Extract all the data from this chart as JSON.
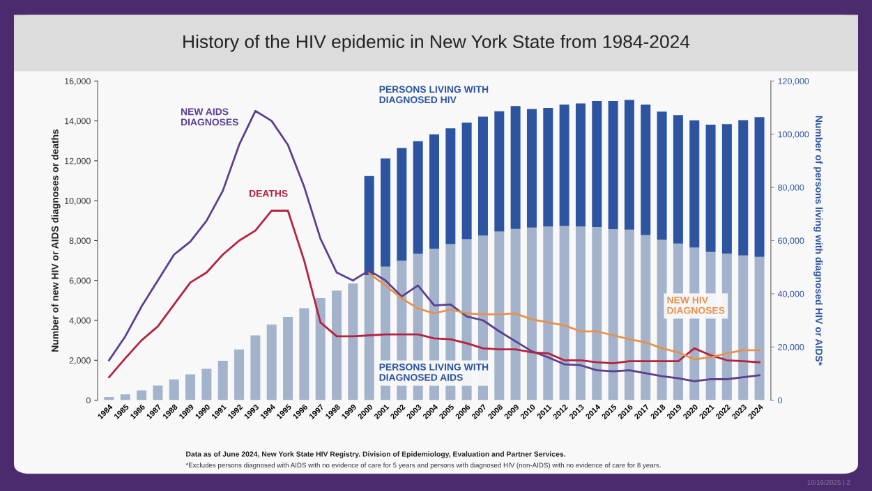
{
  "chart_data": {
    "type": "bar",
    "stacked": true,
    "title": "History of the HIV epidemic in New York State from 1984-2024",
    "ylabel": "Number of new HIV or AIDS diagnoses or deaths",
    "y2label": "Number of persons living with diagnosed HIV or AIDS*",
    "categories": [
      "1984",
      "1985",
      "1986",
      "1987",
      "1988",
      "1989",
      "1990",
      "1991",
      "1992",
      "1993",
      "1994",
      "1995",
      "1996",
      "1997",
      "1998",
      "1999",
      "2000",
      "2001",
      "2002",
      "2003",
      "2004",
      "2005",
      "2006",
      "2007",
      "2008",
      "2009",
      "2010",
      "2011",
      "2012",
      "2013",
      "2014",
      "2015",
      "2016",
      "2017",
      "2018",
      "2019",
      "2020",
      "2021",
      "2022",
      "2023",
      "2024"
    ],
    "ylim": [
      0,
      16000
    ],
    "yticks": [
      {
        "value": 0,
        "label": "0"
      },
      {
        "value": 2000,
        "label": "2,000"
      },
      {
        "value": 4000,
        "label": "4,000"
      },
      {
        "value": 6000,
        "label": "6,000"
      },
      {
        "value": 8000,
        "label": "8,000"
      },
      {
        "value": 10000,
        "label": "10,000"
      },
      {
        "value": 12000,
        "label": "12,000"
      },
      {
        "value": 14000,
        "label": "14,000"
      },
      {
        "value": 16000,
        "label": "16,000"
      }
    ],
    "y2lim": [
      0,
      120000
    ],
    "y2ticks": [
      {
        "value": 0,
        "label": "0"
      },
      {
        "value": 20000,
        "label": "20,000"
      },
      {
        "value": 40000,
        "label": "40,000"
      },
      {
        "value": 60000,
        "label": "60,000"
      },
      {
        "value": 80000,
        "label": "80,000"
      },
      {
        "value": 100000,
        "label": "100,000"
      },
      {
        "value": 120000,
        "label": "120,000"
      }
    ],
    "grid": false,
    "legend": false,
    "marker": "none",
    "line_style": "solid",
    "series": [
      {
        "name": "PERSONS LIVING WITH DIAGNOSED AIDS",
        "axis": "y2",
        "color": "#a3b3cb",
        "values": [
          1200,
          2200,
          3700,
          5500,
          7800,
          9700,
          11800,
          14800,
          19100,
          24400,
          28400,
          31300,
          34600,
          38400,
          41200,
          43900,
          47000,
          50200,
          52400,
          55000,
          57000,
          58700,
          60500,
          61900,
          63400,
          64400,
          64900,
          65300,
          65500,
          65300,
          65100,
          64300,
          64100,
          62100,
          60300,
          58900,
          57400,
          55700,
          55100,
          54400,
          53900
        ]
      },
      {
        "name": "PERSONS LIVING WITH DIAGNOSED HIV",
        "axis": "y2",
        "color": "#2c54a0",
        "values": [
          null,
          null,
          null,
          null,
          null,
          null,
          null,
          null,
          null,
          null,
          null,
          null,
          null,
          null,
          null,
          null,
          37300,
          40700,
          42400,
          42400,
          42900,
          43500,
          43900,
          44700,
          45200,
          46200,
          44600,
          44600,
          45600,
          46300,
          47400,
          48200,
          48800,
          49000,
          48200,
          48300,
          47800,
          47900,
          48700,
          50900,
          52500
        ]
      },
      {
        "name": "NEW AIDS DIAGNOSES",
        "type": "line",
        "color": "#5b3f8f",
        "values": [
          2000,
          3200,
          4700,
          6000,
          7300,
          7950,
          9000,
          10500,
          12800,
          14500,
          14000,
          12800,
          10700,
          8100,
          6400,
          6000,
          6500,
          6000,
          5200,
          5750,
          4750,
          4800,
          4200,
          4000,
          3450,
          2950,
          2450,
          2150,
          1800,
          1750,
          1500,
          1450,
          1500,
          1350,
          1200,
          1100,
          950,
          1050,
          1050,
          1150,
          1250
        ]
      },
      {
        "name": "DEATHS",
        "type": "line",
        "color": "#b5223f",
        "values": [
          1150,
          2100,
          3000,
          3700,
          4800,
          5900,
          6400,
          7300,
          8000,
          8500,
          9500,
          9500,
          7000,
          3900,
          3200,
          3200,
          3250,
          3300,
          3300,
          3300,
          3100,
          3050,
          2850,
          2600,
          2550,
          2550,
          2400,
          2350,
          2000,
          2000,
          1900,
          1850,
          1950,
          1950,
          1950,
          1950,
          2600,
          2250,
          2000,
          1950,
          1900
        ]
      },
      {
        "name": "NEW HIV DIAGNOSES",
        "type": "line",
        "color": "#e8914a",
        "values": [
          null,
          null,
          null,
          null,
          null,
          null,
          null,
          null,
          null,
          null,
          null,
          null,
          null,
          null,
          null,
          null,
          6350,
          5750,
          5100,
          4600,
          4350,
          4550,
          4350,
          4300,
          4300,
          4350,
          4050,
          3900,
          3750,
          3450,
          3450,
          3250,
          3050,
          2900,
          2600,
          2400,
          2050,
          2150,
          2350,
          2500,
          2500
        ]
      }
    ],
    "annotations": [
      "Data as of June 2024, New York State HIV Registry. Division of Epidemiology, Evaluation and Partner Services.",
      "*Excludes persons diagnosed with AIDS with no evidence of care for 5 years and persons with diagnosed HIV (non-AIDS) with no evidence of care for 8 years.",
      "10/16/2025 | 2"
    ]
  }
}
